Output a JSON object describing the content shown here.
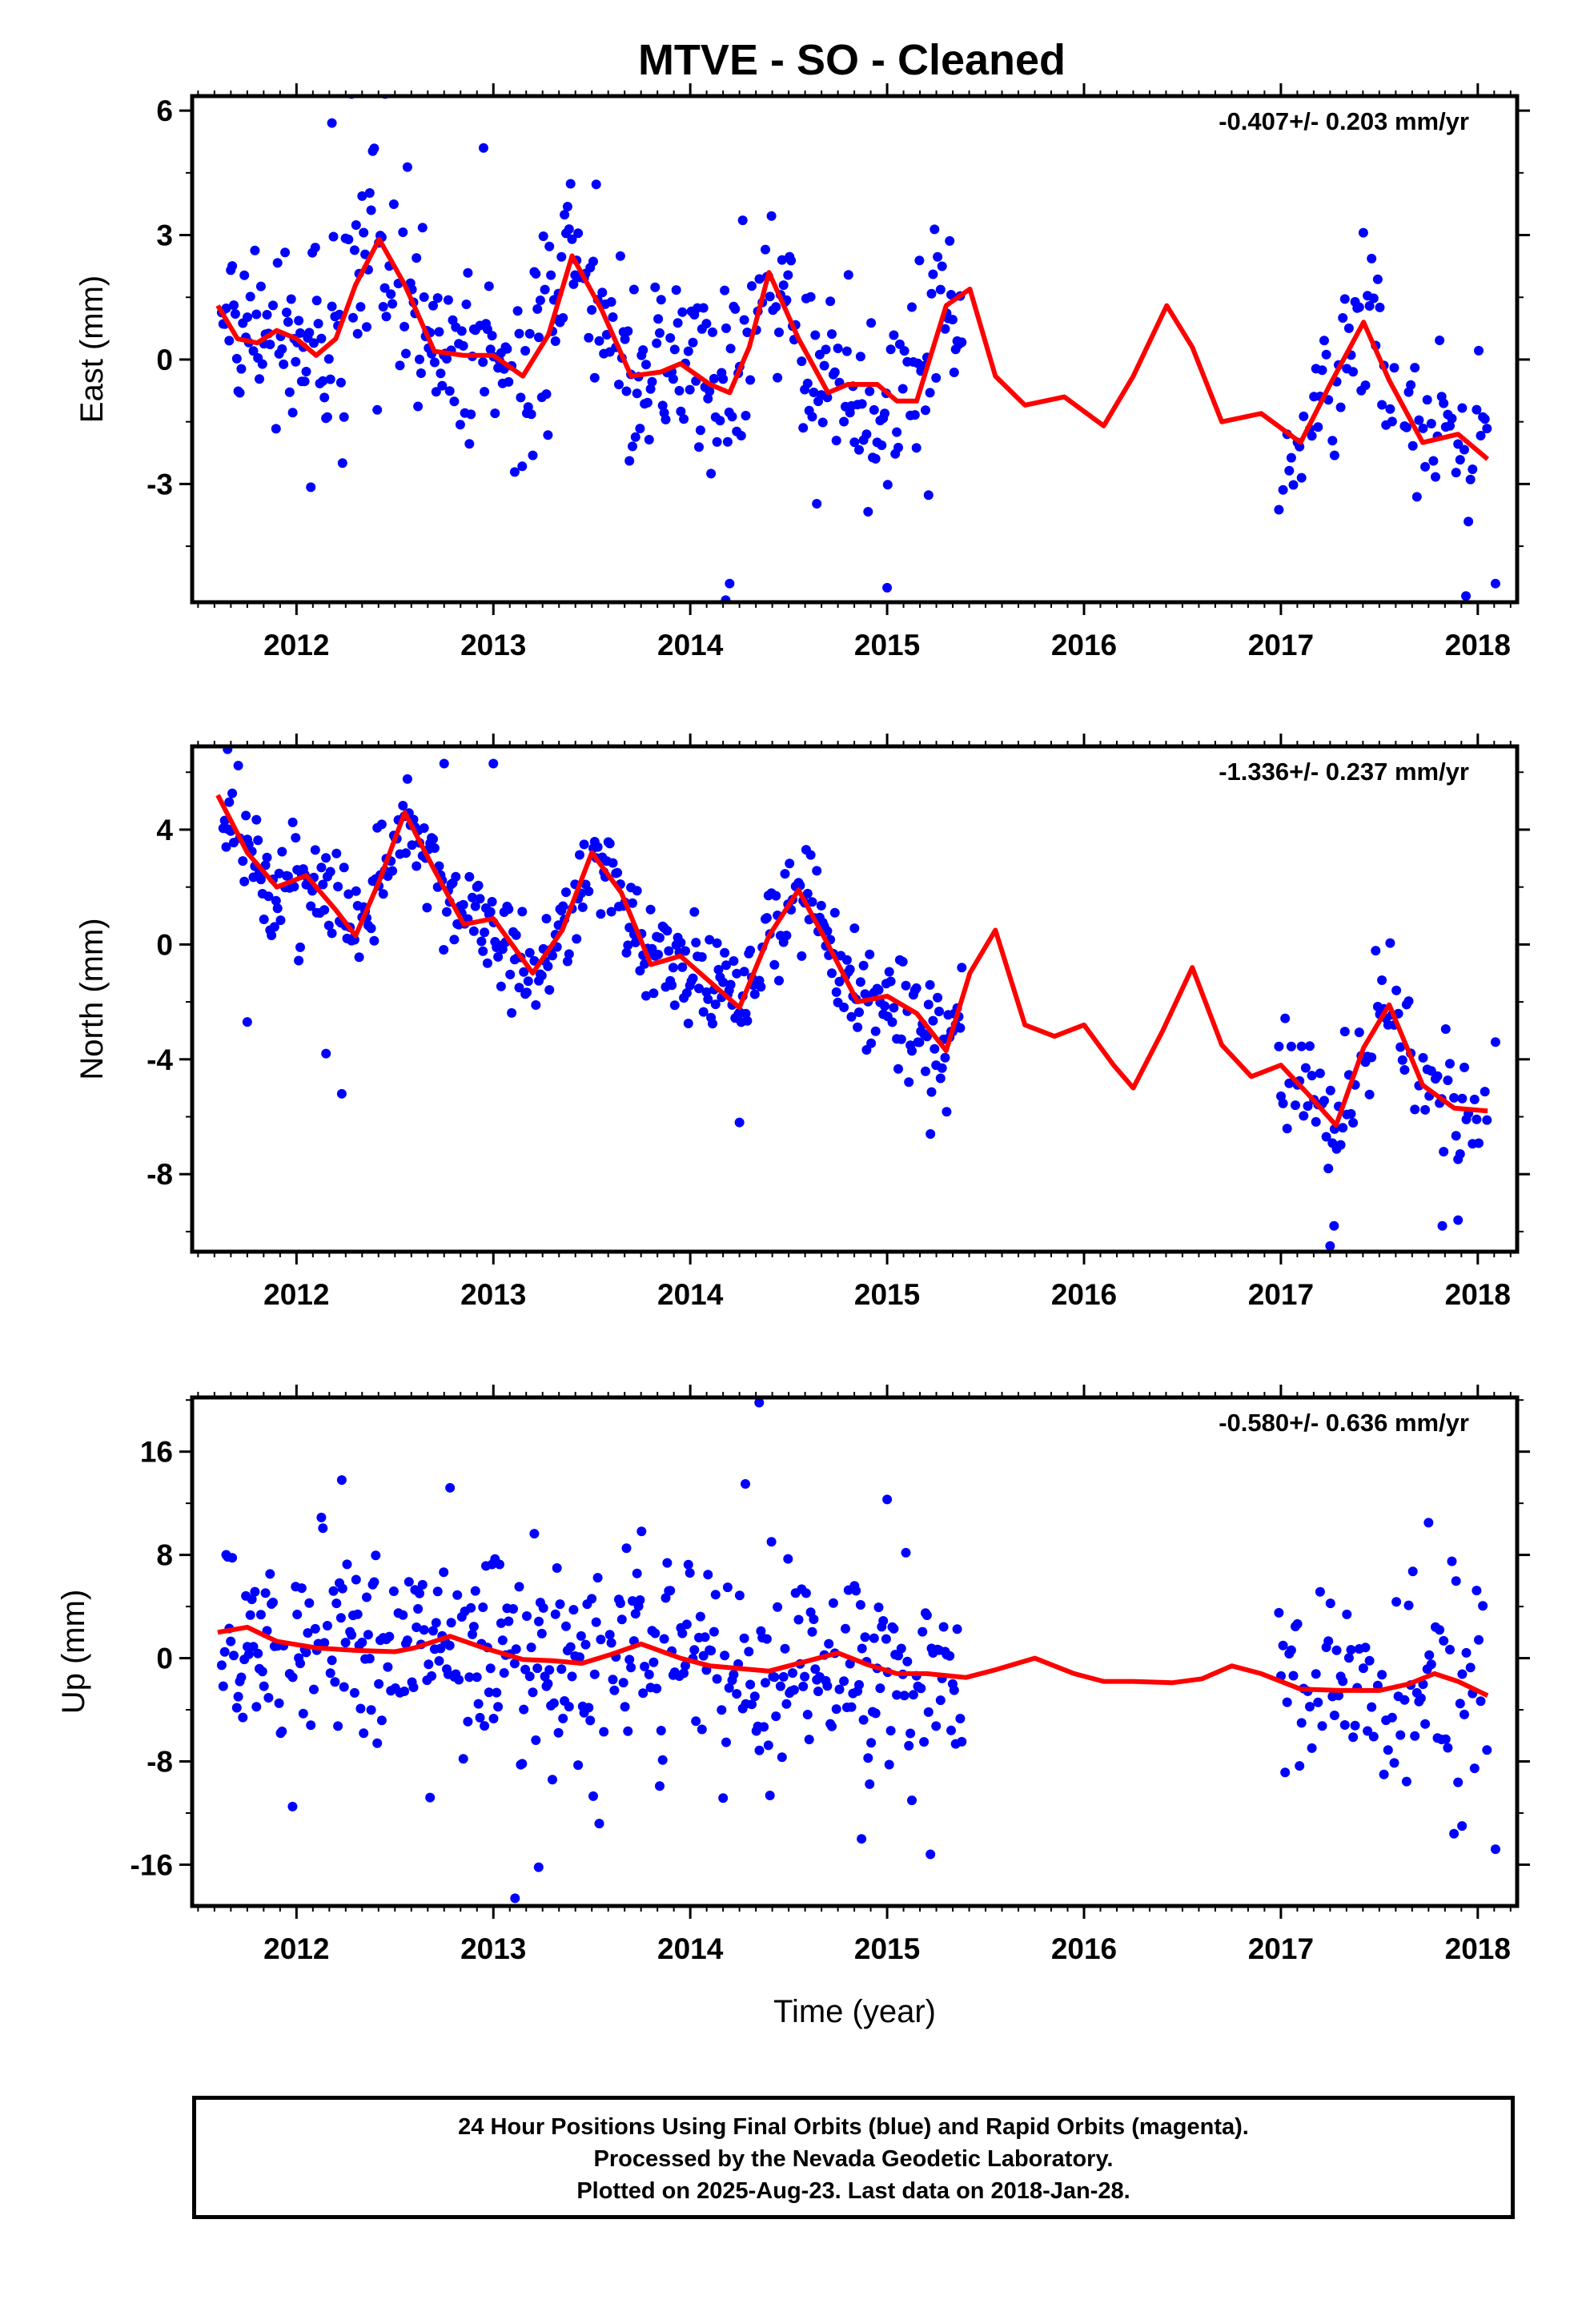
{
  "title": "MTVE  - SO - Cleaned",
  "footer": {
    "line1": "24 Hour Positions Using Final Orbits (blue) and Rapid Orbits (magenta).",
    "line2": "Processed by the Nevada Geodetic Laboratory.",
    "line3": "Plotted on 2025-Aug-23. Last data on 2018-Jan-28."
  },
  "colors": {
    "points": "#0000ff",
    "fit": "#ff0000",
    "frame": "#000000"
  },
  "chart_data": [
    {
      "type": "scatter",
      "ylabel": "East (mm)",
      "xlabel": "",
      "rate": "-0.407+/- 0.203 mm/yr",
      "xlim": [
        2011.47,
        2018.2
      ],
      "ylim": [
        -5.85,
        6.35
      ],
      "x_ticks": [
        "2012",
        "2013",
        "2014",
        "2015",
        "2016",
        "2017",
        "2018"
      ],
      "y_ticks": [
        "6",
        "3",
        "0",
        "-3"
      ],
      "y_tick_values": [
        6,
        3,
        0,
        -3
      ],
      "fit_curve": {
        "x": [
          2011.6,
          2011.7,
          2011.8,
          2011.9,
          2012.0,
          2012.1,
          2012.2,
          2012.3,
          2012.42,
          2012.55,
          2012.7,
          2012.85,
          2013.0,
          2013.15,
          2013.28,
          2013.4,
          2013.55,
          2013.7,
          2013.85,
          2013.95,
          2014.1,
          2014.2,
          2014.3,
          2014.4,
          2014.55,
          2014.7,
          2014.8,
          2014.95,
          2015.05,
          2015.15,
          2015.3,
          2015.42,
          2015.55,
          2015.7,
          2015.9,
          2016.1,
          2016.25,
          2016.42,
          2016.55,
          2016.7,
          2016.9,
          2017.1,
          2017.25,
          2017.42,
          2017.55,
          2017.72,
          2017.9,
          2018.05
        ],
        "y": [
          1.3,
          0.5,
          0.4,
          0.7,
          0.5,
          0.1,
          0.5,
          1.8,
          2.9,
          1.8,
          0.2,
          0.1,
          0.1,
          -0.4,
          0.6,
          2.5,
          1.2,
          -0.4,
          -0.3,
          -0.1,
          -0.6,
          -0.8,
          0.3,
          2.1,
          0.5,
          -0.8,
          -0.6,
          -0.6,
          -1.0,
          -1.0,
          1.3,
          1.7,
          -0.4,
          -1.1,
          -0.9,
          -1.6,
          -0.4,
          1.3,
          0.3,
          -1.5,
          -1.3,
          -2.0,
          -0.6,
          0.9,
          -0.5,
          -2.0,
          -1.8,
          -2.4
        ]
      },
      "points": {
        "segments": [
          [
            2011.62,
            2015.38,
            0.15
          ],
          [
            2016.99,
            2018.05,
            0.11
          ]
        ],
        "noise_sd": 1.15,
        "outliers": [
          [
            2012.28,
            6.4
          ],
          [
            2012.45,
            6.4
          ],
          [
            2014.2,
            -5.4
          ],
          [
            2014.18,
            -5.8
          ],
          [
            2015.0,
            -5.5
          ],
          [
            2017.94,
            -5.7
          ],
          [
            2018.09,
            -5.4
          ],
          [
            2012.18,
            5.7
          ],
          [
            2012.95,
            5.1
          ]
        ]
      }
    },
    {
      "type": "scatter",
      "ylabel": "North (mm)",
      "xlabel": "",
      "rate": "-1.336+/- 0.237 mm/yr",
      "xlim": [
        2011.47,
        2018.2
      ],
      "ylim": [
        -10.7,
        6.9
      ],
      "x_ticks": [
        "2012",
        "2013",
        "2014",
        "2015",
        "2016",
        "2017",
        "2018"
      ],
      "y_ticks": [
        "4",
        "0",
        "-4",
        "-8"
      ],
      "y_tick_values": [
        4,
        0,
        -4,
        -8
      ],
      "fit_curve": {
        "x": [
          2011.6,
          2011.75,
          2011.9,
          2012.05,
          2012.2,
          2012.3,
          2012.42,
          2012.55,
          2012.7,
          2012.85,
          2013.0,
          2013.2,
          2013.35,
          2013.5,
          2013.65,
          2013.8,
          2013.95,
          2014.1,
          2014.25,
          2014.4,
          2014.55,
          2014.7,
          2014.85,
          2015.0,
          2015.15,
          2015.3,
          2015.42,
          2015.55,
          2015.7,
          2015.85,
          2016.0,
          2016.15,
          2016.25,
          2016.4,
          2016.55,
          2016.7,
          2016.85,
          2017.0,
          2017.15,
          2017.28,
          2017.42,
          2017.55,
          2017.72,
          2017.88,
          2018.05
        ],
        "y": [
          5.2,
          3.2,
          2.0,
          2.4,
          1.2,
          0.3,
          2.2,
          4.6,
          2.6,
          0.7,
          0.9,
          -1.0,
          0.5,
          3.2,
          1.8,
          -0.7,
          -0.4,
          -1.3,
          -2.2,
          0.3,
          1.9,
          0.0,
          -2.0,
          -1.8,
          -2.4,
          -3.7,
          -1.0,
          0.5,
          -2.8,
          -3.2,
          -2.8,
          -4.2,
          -5.0,
          -3.0,
          -0.8,
          -3.5,
          -4.6,
          -4.2,
          -5.3,
          -6.3,
          -3.6,
          -2.1,
          -4.9,
          -5.7,
          -5.8
        ]
      },
      "points": {
        "segments": [
          [
            2011.62,
            2015.38,
            0.15
          ],
          [
            2016.99,
            2018.05,
            0.11
          ]
        ],
        "noise_sd": 0.95,
        "outliers": [
          [
            2011.65,
            6.8
          ],
          [
            2012.75,
            6.3
          ],
          [
            2013.0,
            6.3
          ],
          [
            2012.23,
            -5.2
          ],
          [
            2014.25,
            -6.2
          ],
          [
            2015.22,
            -6.6
          ],
          [
            2017.25,
            -10.5
          ],
          [
            2017.27,
            -9.8
          ],
          [
            2017.82,
            -9.8
          ],
          [
            2017.9,
            -9.6
          ],
          [
            2018.09,
            -3.4
          ],
          [
            2011.75,
            -2.7
          ],
          [
            2012.15,
            -3.8
          ]
        ]
      }
    },
    {
      "type": "scatter",
      "ylabel": "Up (mm)",
      "xlabel": "Time (year)",
      "rate": "-0.580+/- 0.636 mm/yr",
      "xlim": [
        2011.47,
        2018.2
      ],
      "ylim": [
        -19.2,
        20.2
      ],
      "x_ticks": [
        "2012",
        "2013",
        "2014",
        "2015",
        "2016",
        "2017",
        "2018"
      ],
      "y_ticks": [
        "16",
        "8",
        "0",
        "-8",
        "-16"
      ],
      "y_tick_values": [
        16,
        8,
        0,
        -8,
        -16
      ],
      "fit_curve": {
        "x": [
          2011.6,
          2011.75,
          2011.9,
          2012.1,
          2012.3,
          2012.5,
          2012.6,
          2012.78,
          2012.95,
          2013.15,
          2013.3,
          2013.45,
          2013.6,
          2013.75,
          2013.95,
          2014.1,
          2014.25,
          2014.4,
          2014.6,
          2014.75,
          2014.9,
          2015.05,
          2015.2,
          2015.4,
          2015.55,
          2015.75,
          2015.95,
          2016.1,
          2016.25,
          2016.45,
          2016.6,
          2016.75,
          2016.9,
          2017.1,
          2017.3,
          2017.5,
          2017.65,
          2017.78,
          2017.9,
          2018.05
        ],
        "y": [
          2.0,
          2.4,
          1.3,
          0.8,
          0.6,
          0.5,
          0.8,
          1.7,
          0.8,
          -0.1,
          -0.2,
          -0.4,
          0.3,
          1.1,
          0.0,
          -0.6,
          -0.8,
          -1.0,
          -0.2,
          0.4,
          -0.5,
          -1.2,
          -1.2,
          -1.5,
          -0.9,
          0.0,
          -1.2,
          -1.8,
          -1.8,
          -1.9,
          -1.6,
          -0.6,
          -1.2,
          -2.4,
          -2.5,
          -2.5,
          -2.0,
          -1.2,
          -1.8,
          -2.9
        ]
      },
      "points": {
        "segments": [
          [
            2011.62,
            2015.38,
            0.15
          ],
          [
            2016.99,
            2018.05,
            0.11
          ]
        ],
        "noise_sd": 4.2,
        "outliers": [
          [
            2014.35,
            19.8
          ],
          [
            2012.23,
            13.8
          ],
          [
            2012.78,
            13.2
          ],
          [
            2014.28,
            13.5
          ],
          [
            2015.0,
            12.3
          ],
          [
            2013.11,
            -18.6
          ],
          [
            2013.23,
            -16.2
          ],
          [
            2015.22,
            -15.2
          ],
          [
            2014.87,
            -14.0
          ],
          [
            2018.09,
            -14.8
          ],
          [
            2017.92,
            -13.0
          ],
          [
            2011.98,
            -11.5
          ],
          [
            2017.75,
            10.5
          ]
        ]
      }
    }
  ]
}
